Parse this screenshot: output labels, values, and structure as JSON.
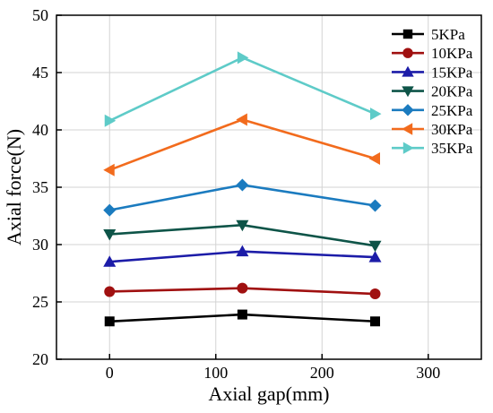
{
  "chart_data": {
    "type": "line",
    "title": "",
    "xlabel": "Axial gap(mm)",
    "ylabel": "Axial force(N)",
    "xlim": [
      -50,
      350
    ],
    "ylim": [
      20,
      50
    ],
    "xticks": [
      0,
      100,
      200,
      300
    ],
    "yticks": [
      20,
      25,
      30,
      35,
      40,
      45,
      50
    ],
    "grid": true,
    "legend_position": "top-right",
    "x": [
      0,
      125,
      250
    ],
    "series": [
      {
        "name": "5KPa",
        "values": [
          23.3,
          23.9,
          23.3
        ],
        "color": "#000000",
        "marker": "square"
      },
      {
        "name": "10KPa",
        "values": [
          25.9,
          26.2,
          25.7
        ],
        "color": "#a01010",
        "marker": "circle"
      },
      {
        "name": "15KPa",
        "values": [
          28.5,
          29.4,
          28.9
        ],
        "color": "#1c1ca8",
        "marker": "triangle-up"
      },
      {
        "name": "20KPa",
        "values": [
          30.9,
          31.7,
          29.9
        ],
        "color": "#0e5448",
        "marker": "triangle-down"
      },
      {
        "name": "25KPa",
        "values": [
          33.0,
          35.2,
          33.4
        ],
        "color": "#1b7bbf",
        "marker": "diamond"
      },
      {
        "name": "30KPa",
        "values": [
          36.5,
          40.9,
          37.5
        ],
        "color": "#f26b1d",
        "marker": "triangle-left"
      },
      {
        "name": "35KPa",
        "values": [
          40.8,
          46.3,
          41.4
        ],
        "color": "#5ecbc8",
        "marker": "triangle-right"
      }
    ]
  }
}
